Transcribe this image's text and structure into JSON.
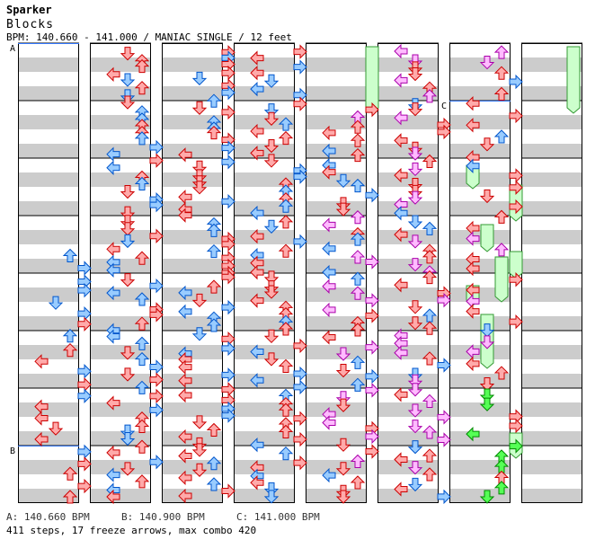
{
  "header": {
    "artist": "Sparker",
    "title": "Blocks",
    "info": "BPM: 140.660 - 141.000 / MANIAC SINGLE / 12 feet"
  },
  "markers": [
    "A",
    "B",
    "C"
  ],
  "legend": {
    "a": "A: 140.660 BPM",
    "b": "B: 140.900 BPM",
    "c": "C: 141.000 BPM"
  },
  "summary": "411 steps, 17 freeze arrows, max combo 420",
  "colors": {
    "stripe": "#cccccc",
    "red_fill": "#ffaaaa",
    "red_stroke": "#cc0000",
    "blue_fill": "#99ccff",
    "blue_stroke": "#0055cc",
    "pink_fill": "#ffbbff",
    "pink_stroke": "#aa00aa",
    "green_fill": "#55ff55",
    "green_stroke": "#008800",
    "freeze_fill": "#ccffcc",
    "freeze_stroke": "#339933",
    "bpm_line": "#3377ff"
  }
}
